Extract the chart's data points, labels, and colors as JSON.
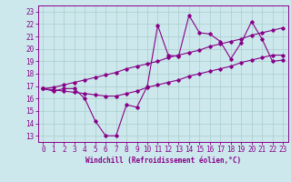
{
  "xlabel": "Windchill (Refroidissement éolien,°C)",
  "x": [
    0,
    1,
    2,
    3,
    4,
    5,
    6,
    7,
    8,
    9,
    10,
    11,
    12,
    13,
    14,
    15,
    16,
    17,
    18,
    19,
    20,
    21,
    22,
    23
  ],
  "y_main": [
    16.8,
    16.6,
    16.8,
    16.8,
    16.0,
    14.2,
    13.0,
    13.0,
    15.5,
    15.3,
    17.0,
    21.9,
    19.5,
    19.4,
    22.7,
    21.3,
    21.2,
    20.6,
    19.2,
    20.5,
    22.2,
    20.8,
    19.0,
    19.1
  ],
  "y_upper": [
    16.8,
    16.9,
    17.1,
    17.3,
    17.5,
    17.7,
    17.9,
    18.1,
    18.4,
    18.6,
    18.8,
    19.0,
    19.3,
    19.5,
    19.7,
    19.9,
    20.2,
    20.4,
    20.6,
    20.8,
    21.1,
    21.3,
    21.5,
    21.7
  ],
  "y_lower": [
    16.8,
    16.7,
    16.6,
    16.5,
    16.4,
    16.3,
    16.2,
    16.2,
    16.4,
    16.6,
    16.9,
    17.1,
    17.3,
    17.5,
    17.8,
    18.0,
    18.2,
    18.4,
    18.6,
    18.9,
    19.1,
    19.3,
    19.5,
    19.5
  ],
  "line_color": "#880088",
  "bg_color": "#cce8ec",
  "grid_color": "#aacccc",
  "xlim": [
    -0.5,
    23.5
  ],
  "ylim": [
    12.5,
    23.5
  ],
  "yticks": [
    13,
    14,
    15,
    16,
    17,
    18,
    19,
    20,
    21,
    22,
    23
  ],
  "xticks": [
    0,
    1,
    2,
    3,
    4,
    5,
    6,
    7,
    8,
    9,
    10,
    11,
    12,
    13,
    14,
    15,
    16,
    17,
    18,
    19,
    20,
    21,
    22,
    23
  ],
  "tick_fontsize": 5.5,
  "xlabel_fontsize": 5.5
}
